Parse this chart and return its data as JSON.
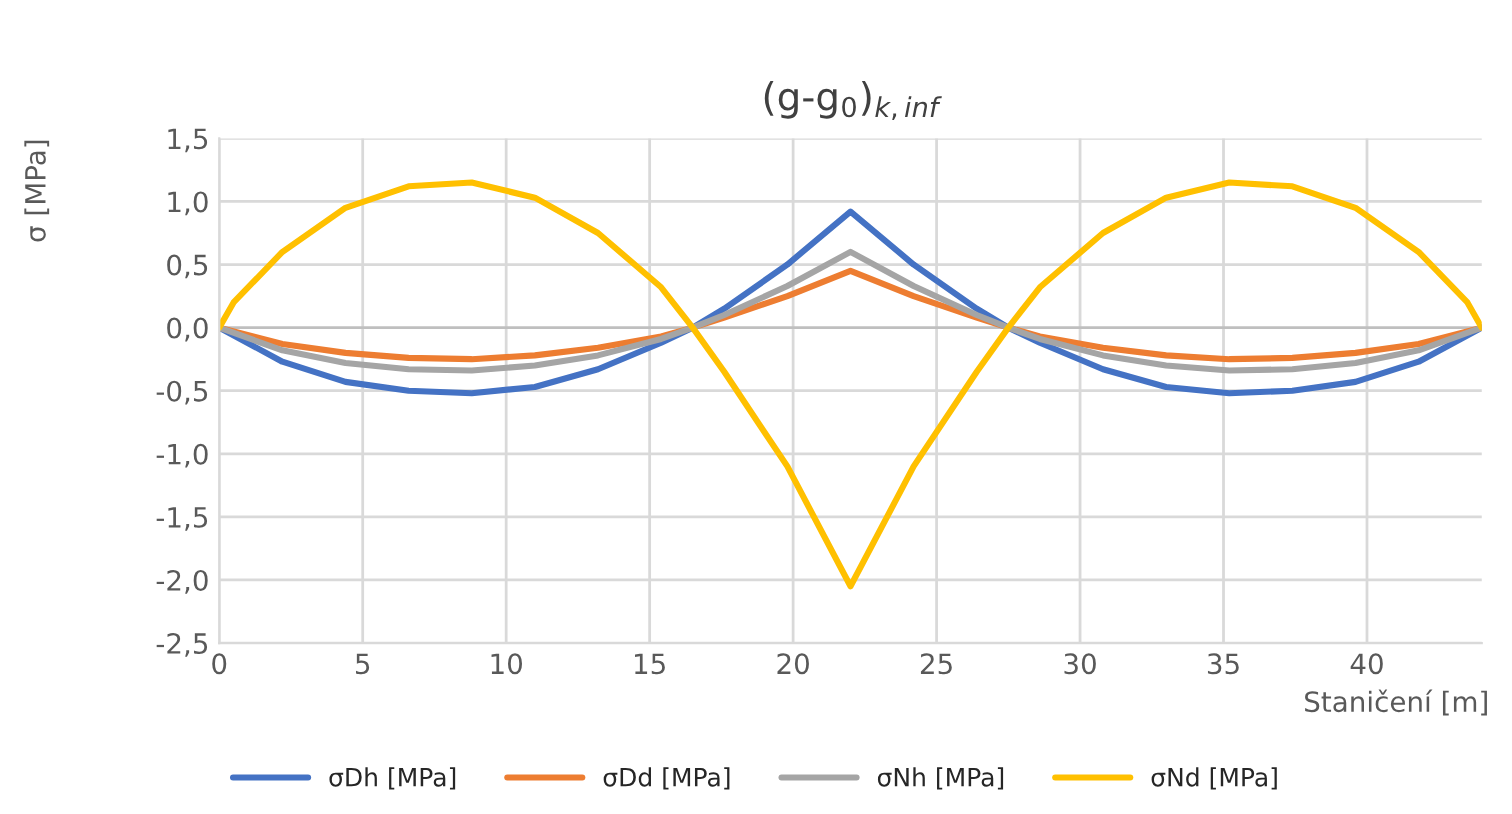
{
  "chart_data": {
    "type": "line",
    "title": "(g-g$_{0}$)$_{k,inf}$",
    "xlabel": "Staničení [m]",
    "ylabel": "σ [MPa]",
    "x": [
      0,
      2.2,
      4.4,
      6.6,
      8.8,
      11,
      13.2,
      15.4,
      16.5,
      17.6,
      19.8,
      22,
      24.2,
      26.4,
      27.5,
      28.6,
      30.8,
      33,
      35.2,
      37.4,
      39.6,
      41.8,
      44
    ],
    "series": [
      {
        "name": "σDh [MPa]",
        "color": "#4472c4",
        "values": [
          0,
          -0.27,
          -0.43,
          -0.5,
          -0.52,
          -0.47,
          -0.33,
          -0.12,
          0,
          0.15,
          0.5,
          0.92,
          0.5,
          0.15,
          0,
          -0.12,
          -0.33,
          -0.47,
          -0.52,
          -0.5,
          -0.43,
          -0.27,
          0
        ]
      },
      {
        "name": "σDd [MPa]",
        "color": "#ed7d31",
        "values": [
          0,
          -0.13,
          -0.2,
          -0.24,
          -0.25,
          -0.22,
          -0.16,
          -0.07,
          0,
          0.08,
          0.25,
          0.45,
          0.25,
          0.08,
          0,
          -0.07,
          -0.16,
          -0.22,
          -0.25,
          -0.24,
          -0.2,
          -0.13,
          0
        ]
      },
      {
        "name": "σNh [MPa]",
        "color": "#a5a5a5",
        "values": [
          0,
          -0.18,
          -0.28,
          -0.33,
          -0.34,
          -0.3,
          -0.22,
          -0.09,
          0,
          0.1,
          0.33,
          0.6,
          0.33,
          0.1,
          0,
          -0.09,
          -0.22,
          -0.3,
          -0.34,
          -0.33,
          -0.28,
          -0.18,
          0
        ]
      },
      {
        "name": "σNd [MPa]",
        "color": "#ffc000",
        "x": [
          0,
          0.5,
          2.2,
          4.4,
          6.6,
          8.8,
          11,
          13.2,
          15.4,
          16.5,
          17.6,
          19.8,
          22,
          24.2,
          26.4,
          27.5,
          28.6,
          30.8,
          33,
          35.2,
          37.4,
          39.6,
          41.8,
          43.5,
          44
        ],
        "values": [
          0,
          0.2,
          0.6,
          0.95,
          1.12,
          1.15,
          1.03,
          0.75,
          0.32,
          0,
          -0.35,
          -1.1,
          -2.05,
          -1.1,
          -0.35,
          0,
          0.32,
          0.75,
          1.03,
          1.15,
          1.12,
          0.95,
          0.6,
          0.2,
          0
        ]
      }
    ],
    "xlim": [
      0,
      44
    ],
    "xticks": [
      0,
      5,
      10,
      15,
      20,
      25,
      30,
      35,
      40
    ],
    "ylim": [
      -2.5,
      1.5
    ],
    "yticks": [
      {
        "value": -2.5,
        "label": "-2,5"
      },
      {
        "value": -2,
        "label": "-2,0"
      },
      {
        "value": -1.5,
        "label": "-1,5"
      },
      {
        "value": -1,
        "label": "-1,0"
      },
      {
        "value": -0.5,
        "label": "-0,5"
      },
      {
        "value": 0,
        "label": "0,0"
      },
      {
        "value": 0.5,
        "label": "0,5"
      },
      {
        "value": 1,
        "label": "1,0"
      },
      {
        "value": 1.5,
        "label": "1,5"
      }
    ],
    "grid": true,
    "legend": "bottom",
    "marker": "none",
    "line_style": "solid"
  }
}
